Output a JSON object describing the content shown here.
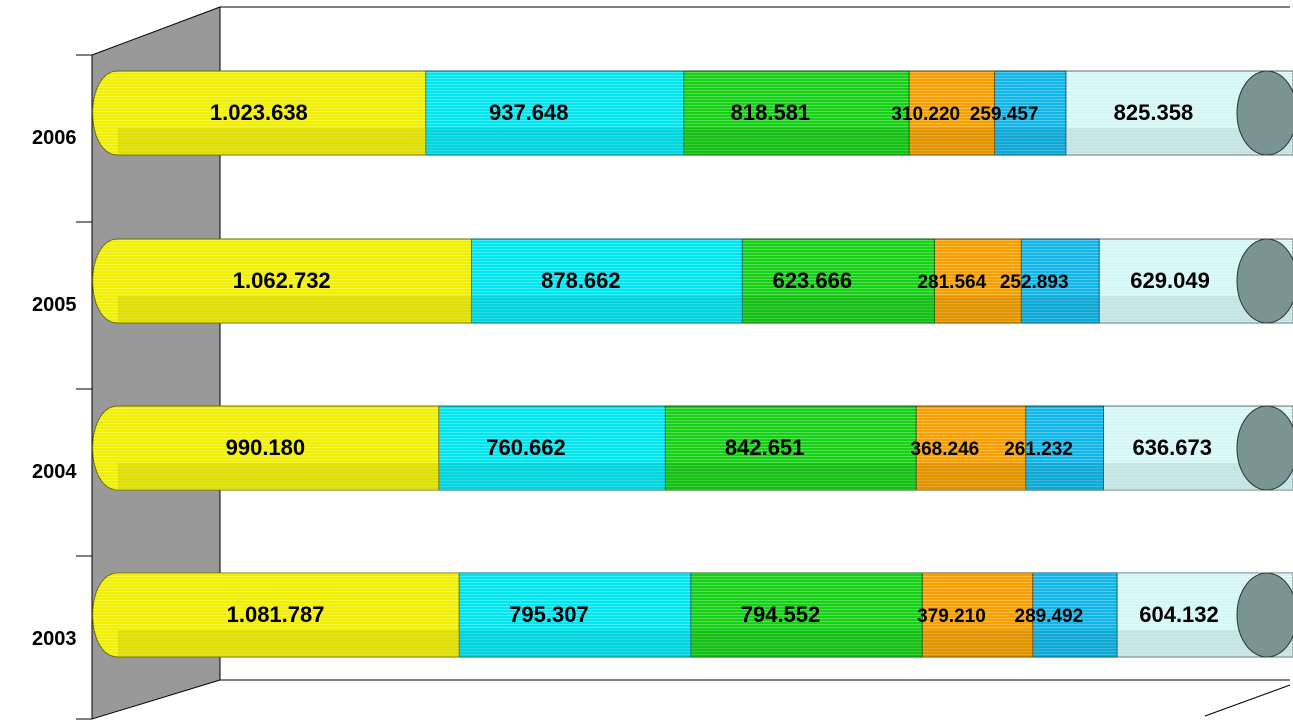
{
  "chart_data": {
    "type": "bar",
    "orientation": "horizontal",
    "stacked": true,
    "style": "3d-cylinder",
    "categories": [
      "2006",
      "2005",
      "2004",
      "2003"
    ],
    "series": [
      {
        "values": [
          1023638,
          1062732,
          990180,
          1081787
        ],
        "labels": [
          "1.023.638",
          "1.062.732",
          "990.180",
          "1.081.787"
        ],
        "color": "#f0f000"
      },
      {
        "values": [
          937648,
          878662,
          760662,
          795307
        ],
        "labels": [
          "937.648",
          "878.662",
          "760.662",
          "795.307"
        ],
        "color": "#00e6f0"
      },
      {
        "values": [
          818581,
          623666,
          842651,
          794552
        ],
        "labels": [
          "818.581",
          "623.666",
          "842.651",
          "794.552"
        ],
        "color": "#16d016"
      },
      {
        "values": [
          310220,
          281564,
          368246,
          379210
        ],
        "labels": [
          "310.220",
          "281.564",
          "368.246",
          "379.210"
        ],
        "color": "#f5a000"
      },
      {
        "values": [
          259457,
          252893,
          261232,
          289492
        ],
        "labels": [
          "259.457",
          "252.893",
          "261.232",
          "289.492"
        ],
        "color": "#10b6e6"
      },
      {
        "values": [
          825358,
          629049,
          636673,
          604132
        ],
        "labels": [
          "825.358",
          "629.049",
          "636.673",
          "604.132"
        ],
        "color": "#d4f6f6"
      }
    ],
    "title": "",
    "xlabel": "",
    "ylabel": "",
    "grid": false,
    "legend": "none",
    "wall_color": "#999999",
    "end_cap_color": "#7a9494"
  }
}
